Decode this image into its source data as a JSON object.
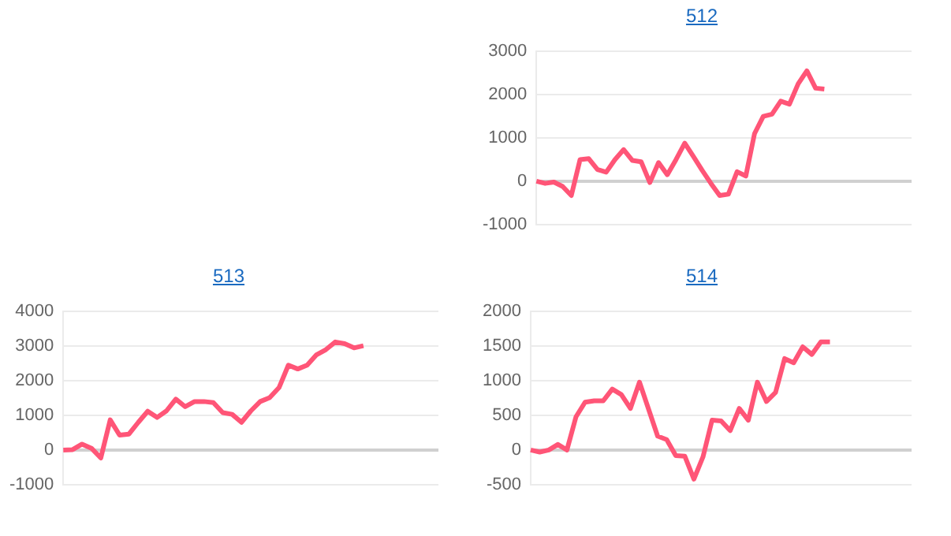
{
  "chart_data": [
    {
      "type": "line",
      "title": "512",
      "categories": [
        null,
        null,
        null,
        null,
        null,
        null,
        null,
        null,
        null,
        null,
        null,
        null,
        null,
        null,
        null,
        null,
        null,
        null,
        null,
        null,
        null,
        null,
        null,
        null,
        null,
        null,
        null,
        null,
        null,
        null,
        null,
        null,
        null,
        null,
        null,
        null,
        null,
        null,
        null,
        null,
        null,
        null,
        null,
        null
      ],
      "series": [
        {
          "color": "#ff5577",
          "values": [
            0,
            -50,
            -20,
            -120,
            -330,
            500,
            520,
            270,
            210,
            500,
            730,
            480,
            450,
            -30,
            430,
            150,
            500,
            880,
            570,
            250,
            -50,
            -330,
            -300,
            220,
            120,
            1100,
            1500,
            1550,
            1850,
            1780,
            2250,
            2550,
            2150,
            2130,
            null,
            null,
            null,
            null,
            null,
            null,
            null,
            null,
            null,
            null
          ]
        }
      ],
      "ylim": [
        -1000,
        3000
      ],
      "yticks": [
        -1000,
        0,
        1000,
        2000,
        3000
      ],
      "grid": "y",
      "tick_labels": "y",
      "marker": "none",
      "line_style": "solid"
    },
    {
      "type": "line",
      "title": "513",
      "categories": [
        null,
        null,
        null,
        null,
        null,
        null,
        null,
        null,
        null,
        null,
        null,
        null,
        null,
        null,
        null,
        null,
        null,
        null,
        null,
        null,
        null,
        null,
        null,
        null,
        null,
        null,
        null,
        null,
        null,
        null,
        null,
        null,
        null,
        null,
        null,
        null,
        null,
        null,
        null,
        null,
        null
      ],
      "series": [
        {
          "color": "#ff5577",
          "values": [
            0,
            10,
            170,
            50,
            -230,
            870,
            430,
            460,
            800,
            1120,
            940,
            1130,
            1470,
            1250,
            1400,
            1400,
            1370,
            1080,
            1030,
            800,
            1130,
            1400,
            1510,
            1800,
            2450,
            2340,
            2450,
            2750,
            2900,
            3120,
            3070,
            2950,
            3010,
            null,
            null,
            null,
            null,
            null,
            null,
            null,
            null
          ]
        }
      ],
      "ylim": [
        -1000,
        4000
      ],
      "yticks": [
        -1000,
        0,
        1000,
        2000,
        3000,
        4000
      ],
      "grid": "y",
      "tick_labels": "y",
      "marker": "none",
      "line_style": "solid"
    },
    {
      "type": "line",
      "title": "514",
      "categories": [
        null,
        null,
        null,
        null,
        null,
        null,
        null,
        null,
        null,
        null,
        null,
        null,
        null,
        null,
        null,
        null,
        null,
        null,
        null,
        null,
        null,
        null,
        null,
        null,
        null,
        null,
        null,
        null,
        null,
        null,
        null,
        null,
        null,
        null,
        null,
        null,
        null,
        null,
        null,
        null,
        null,
        null,
        null
      ],
      "series": [
        {
          "color": "#ff5577",
          "values": [
            0,
            -30,
            0,
            80,
            0,
            480,
            690,
            710,
            710,
            880,
            800,
            600,
            980,
            590,
            200,
            150,
            -80,
            -90,
            -420,
            -100,
            430,
            420,
            280,
            600,
            430,
            980,
            700,
            830,
            1320,
            1260,
            1490,
            1380,
            1560,
            1560,
            null,
            null,
            null,
            null,
            null,
            null,
            null,
            null,
            null
          ]
        }
      ],
      "ylim": [
        -500,
        2000
      ],
      "yticks": [
        -500,
        0,
        500,
        1000,
        1500,
        2000
      ],
      "grid": "y",
      "tick_labels": "y",
      "marker": "none",
      "line_style": "solid"
    }
  ]
}
